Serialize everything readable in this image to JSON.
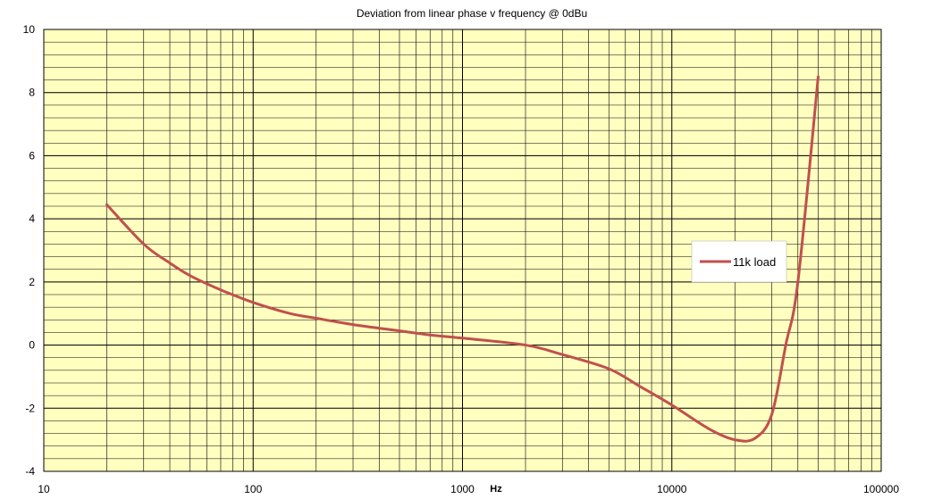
{
  "chart_data": {
    "type": "line",
    "title": "Deviation from linear phase v frequency @ 0dBu",
    "xlabel": "Hz",
    "ylabel": "",
    "x_scale": "log",
    "xlim": [
      10,
      100000
    ],
    "ylim": [
      -4,
      10
    ],
    "x_ticks": [
      "10",
      "100",
      "1000",
      "10000",
      "100000"
    ],
    "y_ticks": [
      "10",
      "8",
      "6",
      "4",
      "2",
      "0",
      "-2",
      "-4"
    ],
    "grid": true,
    "legend_position": "right",
    "plot_background": "#ffffc0",
    "series": [
      {
        "name": "11k load",
        "color": "#c0504d",
        "x": [
          20,
          30,
          40,
          50,
          70,
          100,
          150,
          200,
          300,
          500,
          700,
          1000,
          2000,
          3000,
          5000,
          7000,
          10000,
          15000,
          20000,
          25000,
          30000,
          35000,
          40000,
          50000
        ],
        "y": [
          4.45,
          3.2,
          2.6,
          2.2,
          1.75,
          1.35,
          1.0,
          0.85,
          0.65,
          0.45,
          0.32,
          0.22,
          0.0,
          -0.3,
          -0.75,
          -1.3,
          -1.9,
          -2.65,
          -3.0,
          -2.95,
          -2.2,
          0.0,
          2.0,
          8.5
        ]
      }
    ]
  }
}
